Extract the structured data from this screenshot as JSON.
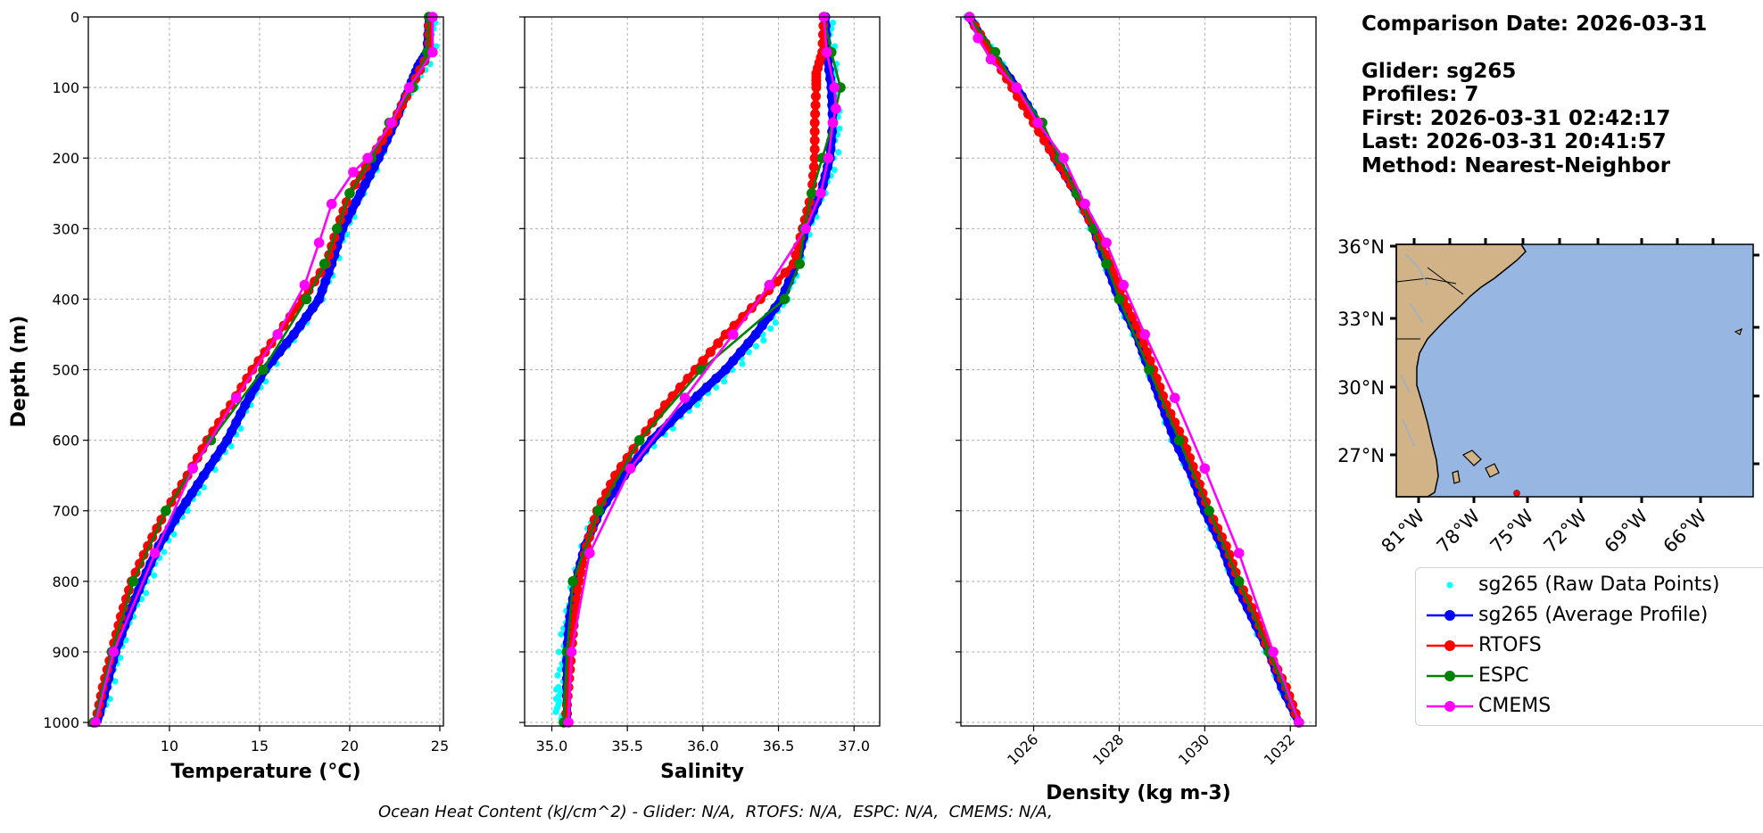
{
  "info": {
    "comparison_date": "Comparison Date: 2026-03-31",
    "glider": "Glider: sg265",
    "profiles": "Profiles: 7",
    "first": "First: 2026-03-31 02:42:17",
    "last": "Last: 2026-03-31 20:41:57",
    "method": "Method: Nearest-Neighbor"
  },
  "footer": "Ocean Heat Content (kJ/cm^2) - Glider: N/A,  RTOFS: N/A,  ESPC: N/A,  CMEMS: N/A,",
  "legend": {
    "items": [
      {
        "label": "sg265 (Raw Data Points)",
        "color": "#00ffff",
        "style": "dots"
      },
      {
        "label": "sg265 (Average Profile)",
        "color": "#0000ff",
        "style": "line-marker"
      },
      {
        "label": "RTOFS",
        "color": "#ff0000",
        "style": "line-marker"
      },
      {
        "label": "ESPC",
        "color": "#008000",
        "style": "line-marker"
      },
      {
        "label": "CMEMS",
        "color": "#ff00ff",
        "style": "line-marker"
      }
    ]
  },
  "chart_data": [
    {
      "type": "line",
      "xlabel": "Temperature (°C)",
      "ylabel": "Depth (m)",
      "xlim": [
        5.5,
        25.2
      ],
      "ylim": [
        1005,
        0
      ],
      "xticks": [
        "10",
        "15",
        "20",
        "25"
      ],
      "yticks": [
        "0",
        "100",
        "200",
        "300",
        "400",
        "500",
        "600",
        "700",
        "800",
        "900",
        "1000"
      ],
      "grid": true,
      "series": [
        {
          "name": "sg265 (Raw Data Points)",
          "color": "#00ffff",
          "depth": [
            0,
            50,
            100,
            150,
            200,
            250,
            300,
            350,
            400,
            450,
            500,
            550,
            600,
            650,
            700,
            750,
            800,
            850,
            900,
            950,
            1000
          ],
          "values": [
            24.6,
            24.6,
            23.6,
            22.3,
            21.6,
            20.7,
            19.8,
            19.1,
            18.4,
            17.0,
            15.5,
            14.4,
            13.5,
            12.1,
            10.9,
            9.7,
            8.8,
            7.9,
            7.2,
            6.7,
            6.1
          ]
        },
        {
          "name": "sg265 (Average Profile)",
          "color": "#0000ff",
          "depth": [
            0,
            50,
            70,
            100,
            150,
            200,
            250,
            300,
            350,
            400,
            450,
            500,
            550,
            600,
            650,
            700,
            750,
            800,
            850,
            900,
            950,
            1000
          ],
          "values": [
            24.4,
            24.3,
            23.8,
            23.3,
            22.5,
            21.6,
            20.6,
            19.6,
            19.0,
            18.3,
            16.9,
            15.3,
            14.2,
            13.2,
            11.9,
            10.6,
            9.4,
            8.5,
            7.7,
            7.0,
            6.5,
            6.0
          ]
        },
        {
          "name": "RTOFS",
          "color": "#ff0000",
          "depth": [
            0,
            50,
            100,
            150,
            200,
            250,
            300,
            350,
            400,
            450,
            500,
            550,
            600,
            650,
            700,
            750,
            800,
            850,
            900,
            950,
            1000
          ],
          "values": [
            24.4,
            24.4,
            23.4,
            22.4,
            21.2,
            20.0,
            19.3,
            18.7,
            17.4,
            16.0,
            14.6,
            13.4,
            12.1,
            11.0,
            9.8,
            8.8,
            7.9,
            7.3,
            6.8,
            6.3,
            5.9
          ]
        },
        {
          "name": "ESPC",
          "color": "#008000",
          "depth": [
            0,
            50,
            100,
            150,
            200,
            250,
            300,
            350,
            400,
            500,
            600,
            700,
            800,
            900,
            1000
          ],
          "values": [
            24.4,
            24.3,
            23.5,
            22.2,
            21.2,
            20.0,
            19.3,
            18.6,
            17.6,
            15.2,
            12.3,
            9.8,
            8.0,
            6.8,
            5.8
          ]
        },
        {
          "name": "CMEMS",
          "color": "#ff00ff",
          "depth": [
            0,
            50,
            100,
            150,
            200,
            220,
            265,
            320,
            380,
            450,
            540,
            640,
            760,
            900,
            1000
          ],
          "values": [
            24.6,
            24.6,
            23.3,
            22.3,
            21.0,
            20.2,
            19.0,
            18.3,
            17.5,
            16.0,
            13.7,
            11.3,
            9.2,
            6.9,
            5.9
          ]
        }
      ]
    },
    {
      "type": "line",
      "xlabel": "Salinity",
      "xlim": [
        34.82,
        37.17
      ],
      "ylim": [
        1005,
        0
      ],
      "xticks": [
        "35.0",
        "35.5",
        "36.0",
        "36.5",
        "37.0"
      ],
      "grid": true,
      "series": [
        {
          "name": "sg265 (Raw Data Points)",
          "color": "#00ffff",
          "depth": [
            0,
            50,
            100,
            150,
            200,
            250,
            300,
            350,
            400,
            450,
            500,
            550,
            600,
            650,
            700,
            750,
            800,
            850,
            900,
            950,
            970,
            1000
          ],
          "values": [
            36.84,
            36.85,
            36.88,
            36.89,
            36.87,
            36.8,
            36.7,
            36.62,
            36.55,
            36.42,
            36.2,
            35.95,
            35.7,
            35.45,
            35.3,
            35.22,
            35.15,
            35.1,
            35.07,
            35.05,
            35.04,
            35.06
          ]
        },
        {
          "name": "sg265 (Average Profile)",
          "color": "#0000ff",
          "depth": [
            0,
            50,
            100,
            150,
            200,
            250,
            300,
            350,
            400,
            450,
            500,
            550,
            600,
            650,
            700,
            750,
            800,
            850,
            900,
            950,
            1000
          ],
          "values": [
            36.81,
            36.82,
            36.85,
            36.86,
            36.84,
            36.78,
            36.68,
            36.62,
            36.52,
            36.35,
            36.15,
            35.9,
            35.66,
            35.48,
            35.32,
            35.22,
            35.16,
            35.12,
            35.1,
            35.1,
            35.1
          ]
        },
        {
          "name": "RTOFS",
          "color": "#ff0000",
          "depth": [
            0,
            50,
            80,
            100,
            150,
            200,
            250,
            300,
            350,
            400,
            450,
            500,
            550,
            600,
            650,
            700,
            750,
            800,
            850,
            900,
            950,
            1000
          ],
          "values": [
            36.8,
            36.79,
            36.75,
            36.75,
            36.74,
            36.74,
            36.72,
            36.66,
            36.6,
            36.38,
            36.15,
            35.95,
            35.75,
            35.58,
            35.42,
            35.3,
            35.23,
            35.18,
            35.15,
            35.13,
            35.11,
            35.09
          ]
        },
        {
          "name": "ESPC",
          "color": "#008000",
          "depth": [
            0,
            50,
            100,
            150,
            200,
            250,
            300,
            350,
            400,
            500,
            600,
            700,
            800,
            900,
            1000
          ],
          "values": [
            36.8,
            36.85,
            36.91,
            36.86,
            36.79,
            36.72,
            36.67,
            36.64,
            36.54,
            35.99,
            35.58,
            35.31,
            35.14,
            35.1,
            35.08
          ]
        },
        {
          "name": "CMEMS",
          "color": "#ff00ff",
          "depth": [
            0,
            50,
            100,
            130,
            150,
            200,
            250,
            300,
            380,
            450,
            540,
            640,
            760,
            900,
            1000
          ],
          "values": [
            36.8,
            36.82,
            36.87,
            36.88,
            36.86,
            36.83,
            36.78,
            36.68,
            36.44,
            36.2,
            35.88,
            35.52,
            35.25,
            35.13,
            35.11
          ]
        }
      ]
    },
    {
      "type": "line",
      "xlabel": "Density (kg m-3)",
      "xlim": [
        1024.3,
        1032.6
      ],
      "ylim": [
        1005,
        0
      ],
      "xticks": [
        "1026",
        "1028",
        "1030",
        "1032"
      ],
      "grid": true,
      "series": [
        {
          "name": "sg265 (Raw Data Points)",
          "color": "#00ffff",
          "depth": [
            0,
            50,
            100,
            150,
            200,
            250,
            300,
            350,
            400,
            450,
            500,
            550,
            600,
            650,
            700,
            750,
            800,
            850,
            900,
            950,
            1000
          ],
          "values": [
            1024.5,
            1025.0,
            1025.6,
            1026.1,
            1026.5,
            1027.0,
            1027.4,
            1027.7,
            1028.0,
            1028.4,
            1028.7,
            1029.0,
            1029.3,
            1029.7,
            1030.0,
            1030.4,
            1030.7,
            1031.1,
            1031.5,
            1031.8,
            1032.2
          ]
        },
        {
          "name": "sg265 (Average Profile)",
          "color": "#0000ff",
          "depth": [
            0,
            50,
            100,
            150,
            200,
            250,
            300,
            350,
            400,
            450,
            500,
            550,
            600,
            650,
            700,
            750,
            800,
            850,
            900,
            950,
            1000
          ],
          "values": [
            1024.5,
            1025.0,
            1025.6,
            1026.1,
            1026.5,
            1027.0,
            1027.4,
            1027.7,
            1028.0,
            1028.4,
            1028.7,
            1029.0,
            1029.3,
            1029.7,
            1030.0,
            1030.4,
            1030.7,
            1031.1,
            1031.5,
            1031.8,
            1032.2
          ]
        },
        {
          "name": "RTOFS",
          "color": "#ff0000",
          "depth": [
            0,
            50,
            100,
            150,
            200,
            250,
            300,
            350,
            400,
            450,
            500,
            550,
            600,
            650,
            700,
            750,
            800,
            850,
            900,
            950,
            1000
          ],
          "values": [
            1024.5,
            1025.0,
            1025.5,
            1026.0,
            1026.5,
            1027.0,
            1027.4,
            1027.8,
            1028.1,
            1028.5,
            1028.8,
            1029.1,
            1029.5,
            1029.8,
            1030.1,
            1030.5,
            1030.8,
            1031.2,
            1031.5,
            1031.9,
            1032.2
          ]
        },
        {
          "name": "ESPC",
          "color": "#008000",
          "depth": [
            0,
            50,
            100,
            150,
            200,
            250,
            300,
            350,
            400,
            500,
            600,
            700,
            800,
            900,
            1000
          ],
          "values": [
            1024.5,
            1025.1,
            1025.6,
            1026.2,
            1026.6,
            1027.0,
            1027.4,
            1027.7,
            1028.0,
            1028.7,
            1029.4,
            1030.1,
            1030.8,
            1031.5,
            1032.2
          ]
        },
        {
          "name": "CMEMS",
          "color": "#ff00ff",
          "depth": [
            0,
            30,
            60,
            100,
            150,
            200,
            265,
            320,
            380,
            450,
            540,
            640,
            760,
            900,
            1000
          ],
          "values": [
            1024.5,
            1024.7,
            1025.0,
            1025.6,
            1026.1,
            1026.7,
            1027.2,
            1027.7,
            1028.1,
            1028.6,
            1029.3,
            1030.0,
            1030.8,
            1031.6,
            1032.2
          ]
        }
      ]
    }
  ],
  "map": {
    "lat_ticks": [
      "36°N",
      "33°N",
      "30°N",
      "27°N"
    ],
    "lon_ticks": [
      "81°W",
      "78°W",
      "75°W",
      "72°W",
      "69°W",
      "66°W"
    ],
    "ocean_color": "#97b6e1",
    "land_color": "#d1b387",
    "glider_marker_color": "#ff0000"
  }
}
